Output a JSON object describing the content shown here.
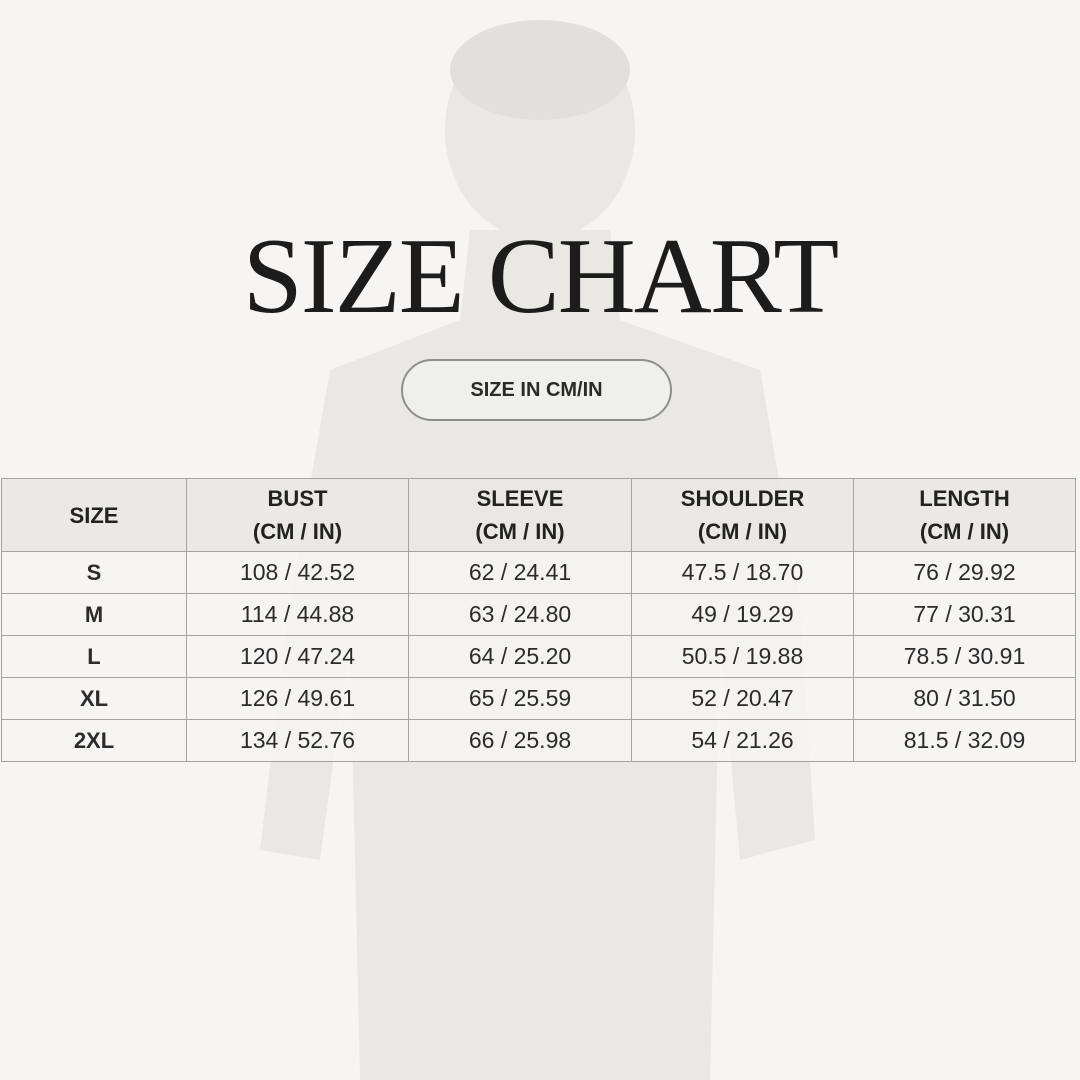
{
  "title": "SIZE CHART",
  "unit_badge": "SIZE IN CM/IN",
  "table": {
    "headers": [
      {
        "line1": "SIZE",
        "line2": ""
      },
      {
        "line1": "BUST",
        "line2": "(CM / IN)"
      },
      {
        "line1": "SLEEVE",
        "line2": "(CM / IN)"
      },
      {
        "line1": "SHOULDER",
        "line2": "(CM / IN)"
      },
      {
        "line1": "LENGTH",
        "line2": "(CM / IN)"
      }
    ],
    "rows": [
      [
        "S",
        "108 / 42.52",
        "62 / 24.41",
        "47.5 / 18.70",
        "76 / 29.92"
      ],
      [
        "M",
        "114 / 44.88",
        "63 / 24.80",
        "49 / 19.29",
        "77 / 30.31"
      ],
      [
        "L",
        "120 / 47.24",
        "64 / 25.20",
        "50.5 / 19.88",
        "78.5 / 30.91"
      ],
      [
        "XL",
        "126 / 49.61",
        "65 / 25.59",
        "52 / 20.47",
        "80 / 31.50"
      ],
      [
        "2XL",
        "134 / 52.76",
        "66 / 25.98",
        "54 / 21.26",
        "81.5 / 32.09"
      ]
    ]
  }
}
